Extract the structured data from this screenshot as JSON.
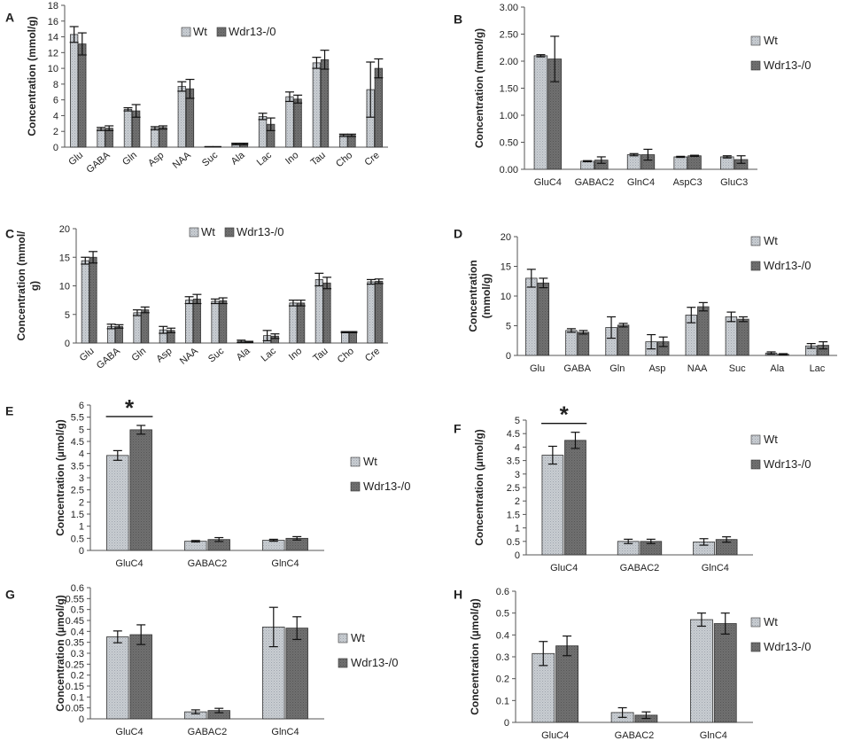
{
  "figure": {
    "legend_labels": [
      "Wt",
      "Wdr13-/0"
    ],
    "colors": {
      "wt_fill": "#c8ccd0",
      "ko_fill": "#6f6f6f",
      "axis": "#555555",
      "stroke": "#333333"
    }
  },
  "chart_data": [
    {
      "id": "A",
      "letter": "A",
      "type": "bar",
      "ylabel": "Concentration (mmol/g)",
      "ylim": [
        0,
        18
      ],
      "yticks": [
        "0",
        "2",
        "4",
        "6",
        "8",
        "10",
        "12",
        "14",
        "16",
        "18"
      ],
      "legend_position": "top-center",
      "categories": [
        "Glu",
        "GABA",
        "Gln",
        "Asp",
        "NAA",
        "Suc",
        "Ala",
        "Lac",
        "Ino",
        "Tau",
        "Cho",
        "Cre"
      ],
      "series": [
        {
          "name": "Wt",
          "values": [
            14.3,
            2.3,
            4.8,
            2.4,
            7.7,
            0.05,
            0.4,
            3.9,
            6.4,
            10.7,
            1.5,
            7.3
          ],
          "errors": [
            1.0,
            0.2,
            0.2,
            0.2,
            0.6,
            0.02,
            0.1,
            0.4,
            0.6,
            0.7,
            0.15,
            3.5
          ]
        },
        {
          "name": "Wdr13-/0",
          "values": [
            13.1,
            2.4,
            4.6,
            2.5,
            7.4,
            0.05,
            0.4,
            2.9,
            6.1,
            11.1,
            1.5,
            10.0
          ],
          "errors": [
            1.4,
            0.3,
            0.8,
            0.2,
            1.2,
            0.02,
            0.1,
            0.8,
            0.5,
            1.2,
            0.15,
            1.2
          ]
        }
      ]
    },
    {
      "id": "B",
      "letter": "B",
      "type": "bar",
      "ylabel": "Concentration (mmol/g)",
      "ylim": [
        0,
        3
      ],
      "yticks": [
        "0.00",
        "0.50",
        "1.00",
        "1.50",
        "2.00",
        "2.50",
        "3.00"
      ],
      "legend_position": "right",
      "categories": [
        "GluC4",
        "GABAC2",
        "GlnC4",
        "AspC3",
        "GluC3"
      ],
      "series": [
        {
          "name": "Wt",
          "values": [
            2.1,
            0.15,
            0.27,
            0.23,
            0.23
          ],
          "errors": [
            0.02,
            0.01,
            0.02,
            0.01,
            0.02
          ]
        },
        {
          "name": "Wdr13-/0",
          "values": [
            2.04,
            0.17,
            0.27,
            0.25,
            0.18
          ],
          "errors": [
            0.42,
            0.06,
            0.1,
            0.01,
            0.07
          ]
        }
      ]
    },
    {
      "id": "C",
      "letter": "C",
      "type": "bar",
      "ylabel": "Concentration (mmol/g)",
      "ylabel_lines": [
        "Concentration (mmol/",
        "g)"
      ],
      "ylim": [
        0,
        20
      ],
      "yticks": [
        "0",
        "5",
        "10",
        "15",
        "20"
      ],
      "legend_position": "top-center",
      "categories": [
        "Glu",
        "GABA",
        "Gln",
        "Asp",
        "NAA",
        "Suc",
        "Ala",
        "Lac",
        "Ino",
        "Tau",
        "Cho",
        "Cre"
      ],
      "series": [
        {
          "name": "Wt",
          "values": [
            14.4,
            2.9,
            5.3,
            2.3,
            7.5,
            7.3,
            0.3,
            1.3,
            7.0,
            11.1,
            1.9,
            10.7
          ],
          "errors": [
            0.6,
            0.4,
            0.5,
            0.6,
            0.6,
            0.4,
            0.2,
            0.9,
            0.5,
            1.1,
            0.1,
            0.4
          ]
        },
        {
          "name": "Wdr13-/0",
          "values": [
            15.0,
            2.9,
            5.8,
            2.2,
            7.7,
            7.4,
            0.2,
            1.2,
            7.0,
            10.5,
            1.9,
            10.8
          ],
          "errors": [
            1.0,
            0.3,
            0.5,
            0.4,
            0.8,
            0.5,
            0.1,
            0.4,
            0.5,
            1.0,
            0.1,
            0.4
          ]
        }
      ]
    },
    {
      "id": "D",
      "letter": "D",
      "type": "bar",
      "ylabel": "Concentration (mmol/g)",
      "ylabel_lines": [
        "Concentration",
        "(mmol/g)"
      ],
      "ylim": [
        0,
        20
      ],
      "yticks": [
        "0",
        "5",
        "10",
        "15",
        "20"
      ],
      "legend_position": "right",
      "categories": [
        "Glu",
        "GABA",
        "Gln",
        "Asp",
        "NAA",
        "Suc",
        "Ala",
        "Lac"
      ],
      "series": [
        {
          "name": "Wt",
          "values": [
            13.0,
            4.2,
            4.7,
            2.3,
            6.8,
            6.5,
            0.4,
            1.6
          ],
          "errors": [
            1.5,
            0.3,
            1.8,
            1.2,
            1.3,
            0.8,
            0.2,
            0.4
          ]
        },
        {
          "name": "Wdr13-/0",
          "values": [
            12.2,
            3.9,
            5.1,
            2.3,
            8.2,
            6.1,
            0.2,
            1.7
          ],
          "errors": [
            0.8,
            0.3,
            0.3,
            0.8,
            0.7,
            0.4,
            0.1,
            0.6
          ]
        }
      ]
    },
    {
      "id": "E",
      "letter": "E",
      "type": "bar",
      "ylabel": "Concentration (µmol/g)",
      "ylim": [
        0,
        6
      ],
      "yticks": [
        "0",
        "0.5",
        "1",
        "1.5",
        "2",
        "2.5",
        "3",
        "3.5",
        "4",
        "4.5",
        "5",
        "5.5",
        "6"
      ],
      "legend_position": "right",
      "categories": [
        "GluC4",
        "GABAC2",
        "GlnC4"
      ],
      "significance": {
        "category": "GluC4",
        "label": "*"
      },
      "series": [
        {
          "name": "Wt",
          "values": [
            3.92,
            0.38,
            0.42
          ],
          "errors": [
            0.2,
            0.03,
            0.04
          ]
        },
        {
          "name": "Wdr13-/0",
          "values": [
            4.98,
            0.45,
            0.5
          ],
          "errors": [
            0.18,
            0.08,
            0.07
          ]
        }
      ]
    },
    {
      "id": "F",
      "letter": "F",
      "type": "bar",
      "ylabel": "Concentration (µmol/g)",
      "ylim": [
        0,
        5
      ],
      "yticks": [
        "0",
        "0.5",
        "1",
        "1.5",
        "2",
        "2.5",
        "3",
        "3.5",
        "4",
        "4.5",
        "5"
      ],
      "legend_position": "right",
      "categories": [
        "GluC4",
        "GABAC2",
        "GlnC4"
      ],
      "significance": {
        "category": "GluC4",
        "label": "*"
      },
      "series": [
        {
          "name": "Wt",
          "values": [
            3.7,
            0.5,
            0.48
          ],
          "errors": [
            0.33,
            0.08,
            0.12
          ]
        },
        {
          "name": "Wdr13-/0",
          "values": [
            4.25,
            0.5,
            0.57
          ],
          "errors": [
            0.3,
            0.08,
            0.1
          ]
        }
      ]
    },
    {
      "id": "G",
      "letter": "G",
      "type": "bar",
      "ylabel": "Concentration (µmol/g)",
      "ylim": [
        0,
        0.6
      ],
      "yticks": [
        "0",
        "0.05",
        "0.1",
        "0.15",
        "0.2",
        "0.25",
        "0.3",
        "0.35",
        "0.4",
        "0.45",
        "0.5",
        "0.55",
        "0.6"
      ],
      "legend_position": "right",
      "categories": [
        "GluC4",
        "GABAC2",
        "GlnC4"
      ],
      "series": [
        {
          "name": "Wt",
          "values": [
            0.375,
            0.032,
            0.42
          ],
          "errors": [
            0.027,
            0.009,
            0.09
          ]
        },
        {
          "name": "Wdr13-/0",
          "values": [
            0.385,
            0.038,
            0.415
          ],
          "errors": [
            0.045,
            0.01,
            0.052
          ]
        }
      ]
    },
    {
      "id": "H",
      "letter": "H",
      "type": "bar",
      "ylabel": "Concentration (µmol/g)",
      "ylim": [
        0,
        0.6
      ],
      "yticks": [
        "0",
        "0.1",
        "0.2",
        "0.3",
        "0.4",
        "0.5",
        "0.6"
      ],
      "legend_position": "right",
      "categories": [
        "GluC4",
        "GABAC2",
        "GlnC4"
      ],
      "series": [
        {
          "name": "Wt",
          "values": [
            0.315,
            0.045,
            0.47
          ],
          "errors": [
            0.055,
            0.022,
            0.03
          ]
        },
        {
          "name": "Wdr13-/0",
          "values": [
            0.35,
            0.033,
            0.452
          ],
          "errors": [
            0.045,
            0.015,
            0.048
          ]
        }
      ]
    }
  ]
}
